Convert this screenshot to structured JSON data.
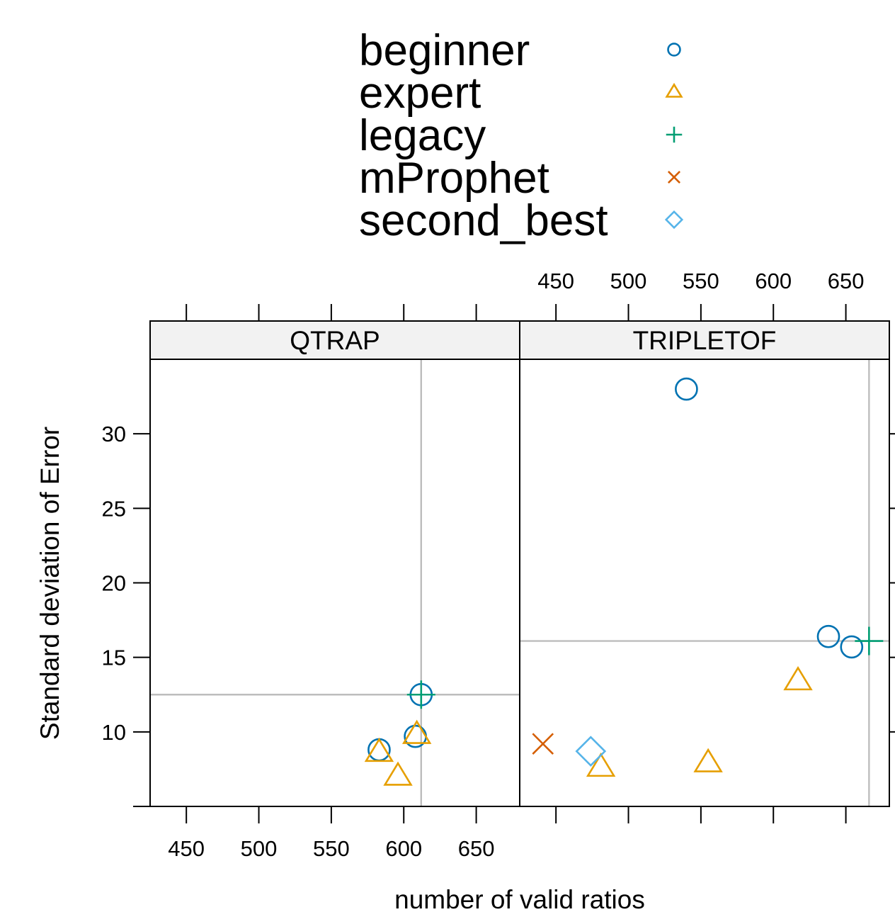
{
  "chart_data": {
    "type": "scatter",
    "xlabel": "number of valid ratios",
    "ylabel": "Standard deviation of Error",
    "xlim": [
      425,
      680
    ],
    "ylim": [
      5,
      35
    ],
    "xticks": [
      450,
      500,
      550,
      600,
      650
    ],
    "yticks": [
      10,
      15,
      20,
      25,
      30
    ],
    "grid": false,
    "legend_position": "top",
    "series": [
      {
        "name": "beginner",
        "color": "#0072B2",
        "symbol": "circle"
      },
      {
        "name": "expert",
        "color": "#E69F00",
        "symbol": "triangle"
      },
      {
        "name": "legacy",
        "color": "#009E73",
        "symbol": "plus"
      },
      {
        "name": "mProphet",
        "color": "#D55E00",
        "symbol": "cross"
      },
      {
        "name": "second_best",
        "color": "#56B4E9",
        "symbol": "diamond"
      }
    ],
    "panels": [
      {
        "strip": "QTRAP",
        "reference": {
          "x": 612,
          "y": 12.5
        },
        "points": [
          {
            "series": "beginner",
            "x": 583,
            "y": 8.8
          },
          {
            "series": "beginner",
            "x": 608,
            "y": 9.7
          },
          {
            "series": "beginner",
            "x": 612,
            "y": 12.5
          },
          {
            "series": "expert",
            "x": 583,
            "y": 8.6
          },
          {
            "series": "expert",
            "x": 609,
            "y": 9.8
          },
          {
            "series": "expert",
            "x": 596,
            "y": 7.0
          },
          {
            "series": "legacy",
            "x": 612,
            "y": 12.5
          }
        ]
      },
      {
        "strip": "TRIPLETOF",
        "reference": {
          "x": 666,
          "y": 16.1
        },
        "points": [
          {
            "series": "beginner",
            "x": 540,
            "y": 33.0
          },
          {
            "series": "beginner",
            "x": 638,
            "y": 16.4
          },
          {
            "series": "beginner",
            "x": 654,
            "y": 15.7
          },
          {
            "series": "expert",
            "x": 617,
            "y": 13.4
          },
          {
            "series": "expert",
            "x": 555,
            "y": 7.9
          },
          {
            "series": "expert",
            "x": 481,
            "y": 7.6
          },
          {
            "series": "legacy",
            "x": 666,
            "y": 16.1
          },
          {
            "series": "mProphet",
            "x": 441,
            "y": 9.2
          },
          {
            "series": "second_best",
            "x": 474,
            "y": 8.7
          }
        ]
      }
    ]
  }
}
